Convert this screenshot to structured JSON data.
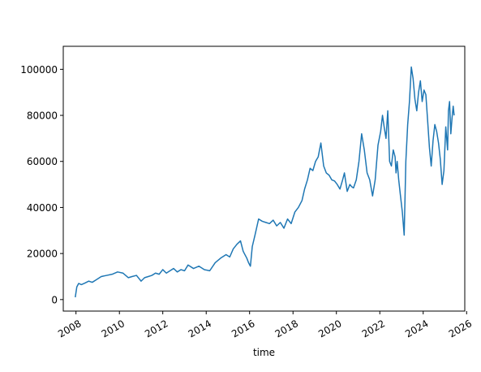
{
  "chart_data": {
    "type": "line",
    "title": "",
    "xlabel": "time",
    "ylabel": "",
    "x_axis_type": "date",
    "xlim": [
      "2007-06-01",
      "2025-12-01"
    ],
    "ylim": [
      -5000,
      110000
    ],
    "grid": false,
    "legend": "none",
    "line_color": "#1f77b4",
    "x_ticks": [
      {
        "date": "2008-01-01",
        "label": "2008"
      },
      {
        "date": "2010-01-01",
        "label": "2010"
      },
      {
        "date": "2012-01-01",
        "label": "2012"
      },
      {
        "date": "2014-01-01",
        "label": "2014"
      },
      {
        "date": "2016-01-01",
        "label": "2016"
      },
      {
        "date": "2018-01-01",
        "label": "2018"
      },
      {
        "date": "2020-01-01",
        "label": "2020"
      },
      {
        "date": "2022-01-01",
        "label": "2022"
      },
      {
        "date": "2024-01-01",
        "label": "2024"
      },
      {
        "date": "2026-01-01",
        "label": "2026"
      }
    ],
    "y_ticks": [
      {
        "value": 0,
        "label": "0"
      },
      {
        "value": 20000,
        "label": "20000"
      },
      {
        "value": 40000,
        "label": "40000"
      },
      {
        "value": 60000,
        "label": "60000"
      },
      {
        "value": 80000,
        "label": "80000"
      },
      {
        "value": 100000,
        "label": "100000"
      }
    ],
    "series": [
      {
        "x": [
          "2007-12-20",
          "2008-01-15",
          "2008-02-15",
          "2008-04-01",
          "2008-06-01",
          "2008-08-01",
          "2008-10-01",
          "2008-12-01",
          "2009-03-01",
          "2009-06-01",
          "2009-09-01",
          "2009-12-01",
          "2010-03-01",
          "2010-06-01",
          "2010-08-01",
          "2010-10-15",
          "2011-01-01",
          "2011-03-01",
          "2011-05-01",
          "2011-07-01",
          "2011-09-01",
          "2011-11-01",
          "2012-01-01",
          "2012-03-01",
          "2012-05-01",
          "2012-07-01",
          "2012-09-01",
          "2012-11-01",
          "2013-01-01",
          "2013-03-01",
          "2013-06-01",
          "2013-09-01",
          "2013-12-01",
          "2014-03-01",
          "2014-06-01",
          "2014-09-01",
          "2014-12-01",
          "2015-02-01",
          "2015-04-01",
          "2015-06-01",
          "2015-08-01",
          "2015-09-15",
          "2015-10-15",
          "2015-11-15",
          "2015-12-15",
          "2016-01-15",
          "2016-02-15",
          "2016-04-01",
          "2016-06-01",
          "2016-08-01",
          "2016-10-01",
          "2016-12-01",
          "2017-02-01",
          "2017-04-01",
          "2017-06-01",
          "2017-08-01",
          "2017-10-01",
          "2017-12-01",
          "2018-02-01",
          "2018-04-01",
          "2018-06-01",
          "2018-07-15",
          "2018-09-01",
          "2018-10-15",
          "2018-12-01",
          "2019-01-15",
          "2019-03-01",
          "2019-04-15",
          "2019-06-01",
          "2019-07-15",
          "2019-09-01",
          "2019-10-15",
          "2019-12-01",
          "2020-01-15",
          "2020-03-01",
          "2020-04-15",
          "2020-05-15",
          "2020-07-01",
          "2020-08-15",
          "2020-09-15",
          "2020-10-15",
          "2020-12-01",
          "2021-01-15",
          "2021-03-01",
          "2021-04-15",
          "2021-06-01",
          "2021-07-15",
          "2021-09-01",
          "2021-10-15",
          "2021-12-01",
          "2022-01-15",
          "2022-02-15",
          "2022-03-15",
          "2022-04-15",
          "2022-05-15",
          "2022-06-15",
          "2022-07-15",
          "2022-08-15",
          "2022-09-15",
          "2022-10-01",
          "2022-10-20",
          "2022-11-15",
          "2022-12-15",
          "2023-01-15",
          "2023-02-15",
          "2023-03-15",
          "2023-04-15",
          "2023-05-15",
          "2023-06-15",
          "2023-07-15",
          "2023-08-15",
          "2023-09-15",
          "2023-10-15",
          "2023-11-15",
          "2023-12-15",
          "2024-01-15",
          "2024-02-15",
          "2024-03-15",
          "2024-04-15",
          "2024-05-15",
          "2024-06-15",
          "2024-07-15",
          "2024-08-15",
          "2024-09-15",
          "2024-10-15",
          "2024-11-15",
          "2024-12-15",
          "2025-01-15",
          "2025-02-15",
          "2025-03-01",
          "2025-03-20",
          "2025-04-10",
          "2025-05-01",
          "2025-05-20",
          "2025-06-05"
        ],
        "values": [
          1000,
          5500,
          7000,
          6500,
          7200,
          8000,
          7500,
          8500,
          10000,
          10500,
          11000,
          12000,
          11500,
          9500,
          10000,
          10500,
          8000,
          9500,
          10000,
          10500,
          11500,
          11000,
          13000,
          11500,
          12500,
          13500,
          12000,
          13000,
          12500,
          15000,
          13500,
          14500,
          13000,
          12500,
          16000,
          18000,
          19500,
          18500,
          22000,
          24000,
          25500,
          21000,
          19500,
          18000,
          16000,
          14500,
          23000,
          28000,
          35000,
          34000,
          33500,
          33000,
          34500,
          32000,
          33500,
          31000,
          35000,
          33000,
          38000,
          40000,
          43000,
          48000,
          52000,
          57000,
          56000,
          60000,
          62000,
          68000,
          58000,
          55000,
          54000,
          52000,
          51500,
          50000,
          48000,
          52000,
          55000,
          47000,
          50000,
          49000,
          48500,
          52000,
          60000,
          72000,
          65000,
          55000,
          52000,
          45000,
          52000,
          67000,
          73000,
          80000,
          75000,
          70000,
          82000,
          60000,
          58000,
          65000,
          62000,
          55000,
          60000,
          52000,
          45000,
          38000,
          28000,
          60000,
          76000,
          86000,
          101000,
          96000,
          87000,
          82000,
          90000,
          95000,
          86000,
          91000,
          89000,
          78000,
          66000,
          58000,
          69000,
          76000,
          73000,
          68000,
          61000,
          50000,
          56000,
          75000,
          65000,
          82000,
          86000,
          72000,
          79000,
          84000,
          80000
        ]
      }
    ]
  }
}
